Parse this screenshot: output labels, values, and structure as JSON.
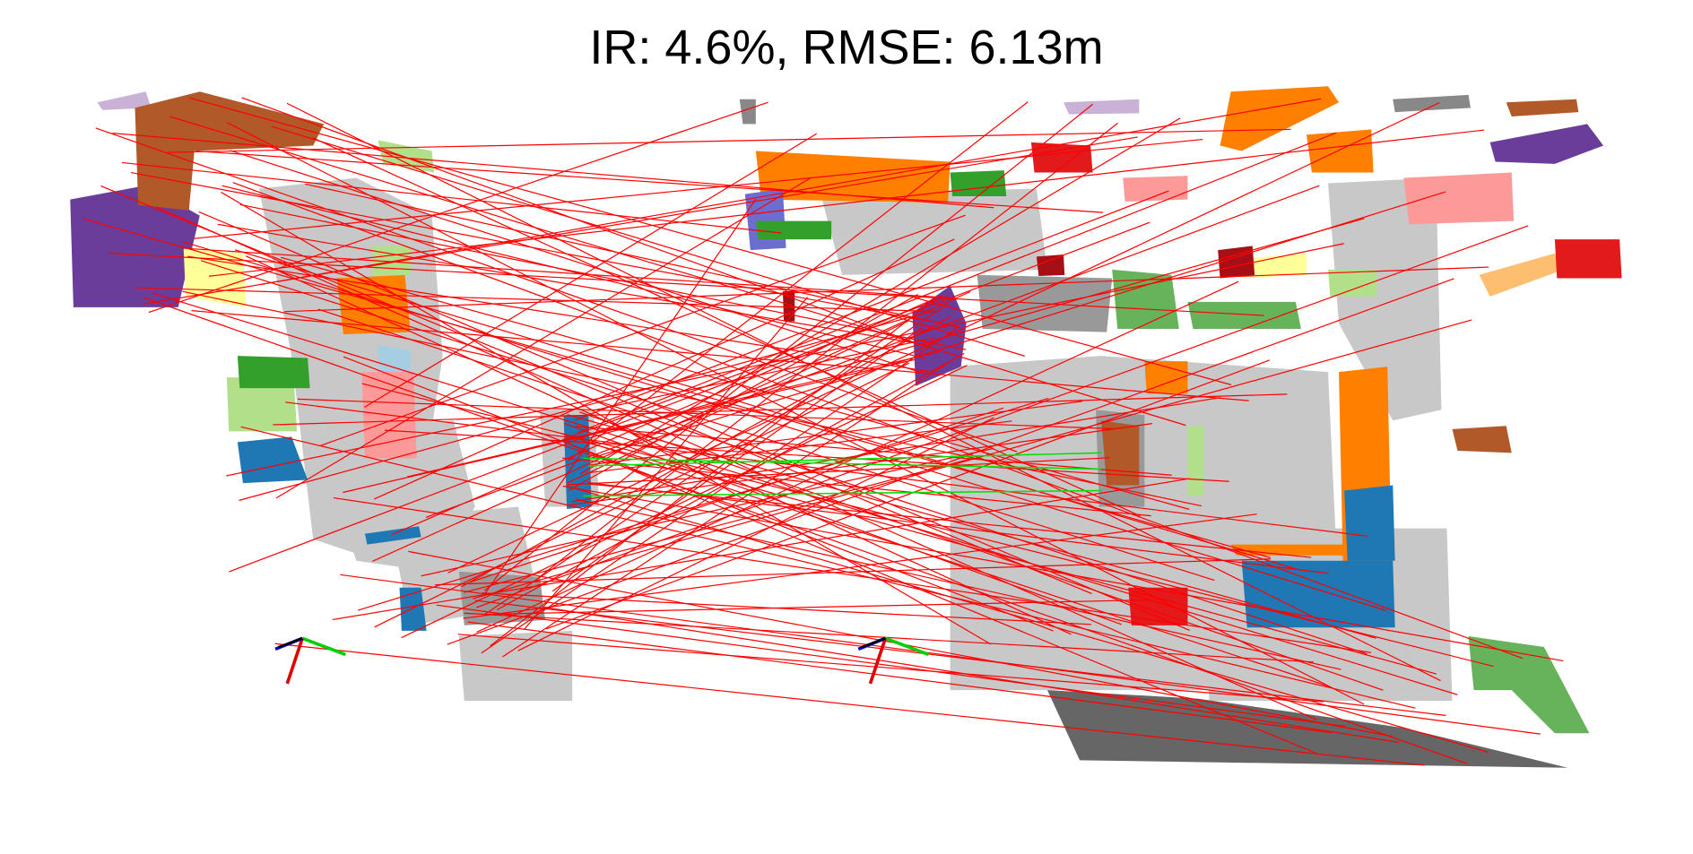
{
  "figure": {
    "title": "IR: 4.6%, RMSE: 6.13m",
    "inlier_ratio_percent": 4.6,
    "rmse_m": 6.13
  },
  "colors": {
    "inlier_correspondence": "#00e000",
    "outlier_correspondence": "#ff0000",
    "background_points": "#c8c8c8",
    "floor_points": "#666666"
  }
}
